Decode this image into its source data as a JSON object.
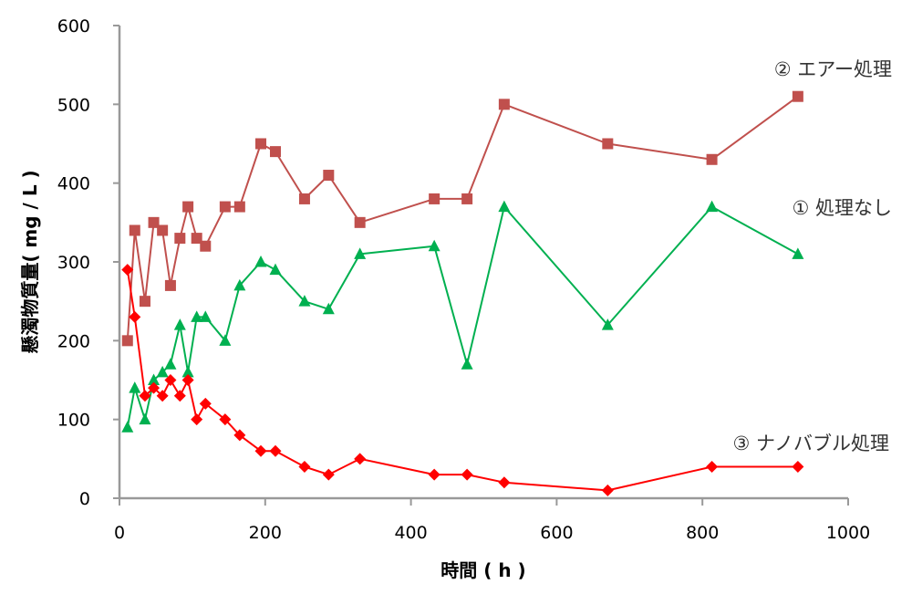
{
  "chart_data": {
    "type": "line",
    "title": "",
    "xlabel": "時間 ( h )",
    "ylabel": "懸濁物質量( mg / L )",
    "xlim": [
      0,
      1000
    ],
    "ylim": [
      0,
      600
    ],
    "xticks": [
      0,
      200,
      400,
      600,
      800,
      1000
    ],
    "yticks": [
      0,
      100,
      200,
      300,
      400,
      500,
      600
    ],
    "grid": false,
    "legend_position": "inline labels at right",
    "series": [
      {
        "name": "② エアー処理",
        "color": "#c0504d",
        "marker": "square",
        "x": [
          11,
          21,
          35,
          47,
          59,
          70,
          83,
          94,
          106,
          118,
          145,
          165,
          194,
          214,
          254,
          287,
          330,
          432,
          477,
          528,
          670,
          813,
          931
        ],
        "values": [
          200,
          340,
          250,
          350,
          340,
          270,
          330,
          370,
          330,
          320,
          370,
          370,
          450,
          440,
          380,
          410,
          350,
          380,
          380,
          500,
          450,
          430,
          510
        ]
      },
      {
        "name": "① 処理なし",
        "color": "#00b050",
        "marker": "triangle",
        "x": [
          11,
          21,
          35,
          47,
          59,
          70,
          83,
          94,
          106,
          118,
          145,
          165,
          194,
          214,
          254,
          287,
          330,
          432,
          477,
          528,
          670,
          813,
          931
        ],
        "values": [
          90,
          140,
          100,
          150,
          160,
          170,
          220,
          160,
          230,
          230,
          200,
          270,
          300,
          290,
          250,
          240,
          310,
          320,
          170,
          370,
          220,
          370,
          310
        ]
      },
      {
        "name": "③ ナノバブル処理",
        "color": "#ff0000",
        "marker": "diamond",
        "x": [
          11,
          21,
          35,
          47,
          59,
          70,
          83,
          94,
          106,
          118,
          145,
          165,
          194,
          214,
          254,
          287,
          330,
          432,
          477,
          528,
          670,
          813,
          931
        ],
        "values": [
          290,
          230,
          130,
          140,
          130,
          150,
          130,
          150,
          100,
          120,
          100,
          80,
          60,
          60,
          40,
          30,
          50,
          30,
          30,
          20,
          10,
          40,
          40
        ]
      }
    ]
  },
  "labels": {
    "series_air": "② エアー処理",
    "series_none": "① 処理なし",
    "series_nano": "③ ナノバブル処理",
    "x_axis_title": "時間 ( h )",
    "y_axis_title": "懸濁物質量( mg / L )"
  }
}
